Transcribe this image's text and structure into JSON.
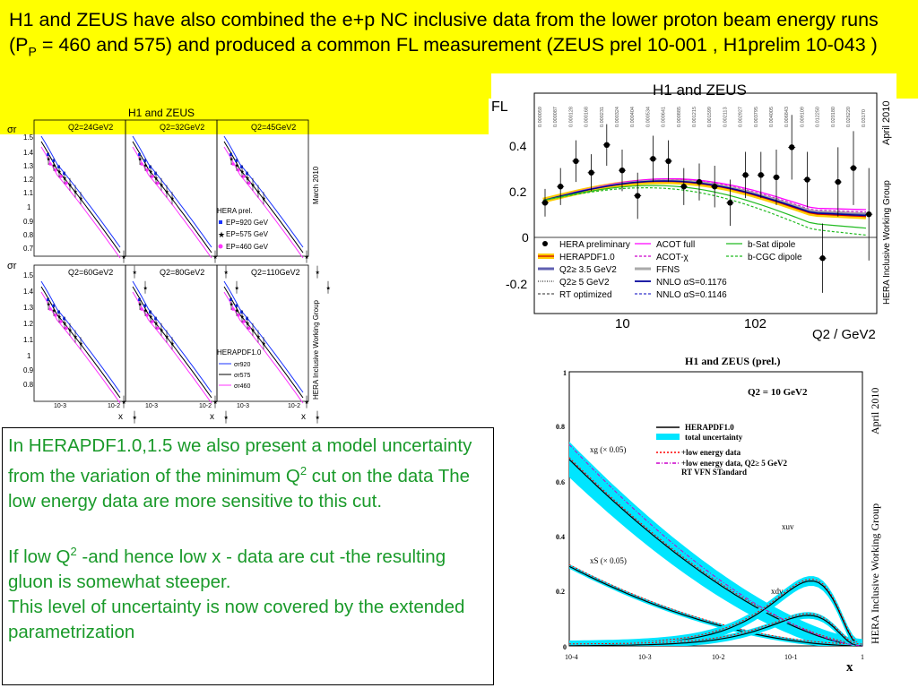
{
  "slide": {
    "title_parts": [
      "H1 and ZEUS have also combined the e+p NC inclusive data from the lower proton beam energy runs (P",
      "P",
      " = 460 and 575) and produced a common FL measurement (ZEUS prel 10-001 , H1prelim 10-043 )"
    ],
    "text": {
      "p1": [
        "In HERAPDF1.0,1.5  we also present a model uncertainty from the variation of the minimum Q",
        "2",
        " cut on the data The low energy data are more sensitive to this cut."
      ],
      "p2": [
        "If low Q",
        "2",
        " -and hence low x - data are cut -the resulting gluon is somewhat steeper."
      ],
      "p3": "This level of uncertainty is now covered by the extended parametrization"
    }
  },
  "sigma_figure": {
    "title": "H1 and ZEUS",
    "side_top": "March 2010",
    "side_bottom": "HERA Inclusive Working Group",
    "ylabel": "σr",
    "xlabel": "x",
    "yticks_top": [
      "1.5",
      "1.4",
      "1.3",
      "1.2",
      "1.1",
      "1",
      "0.9",
      "0.8",
      "0.7"
    ],
    "yticks_bottom": [
      "1.5",
      "1.4",
      "1.3",
      "1.2",
      "1.1",
      "1",
      "0.9",
      "0.8"
    ],
    "xtick_a": "10-3",
    "xtick_b": "10-2",
    "panels": [
      "Q2=24GeV2",
      "Q2=32GeV2",
      "Q2=45GeV2",
      "Q2=60GeV2",
      "Q2=80GeV2",
      "Q2=110GeV2"
    ],
    "legend_data": {
      "title": "HERA prel.",
      "items": [
        "EP=920 GeV",
        "EP=575 GeV",
        "EP=460 GeV"
      ]
    },
    "legend_curves": {
      "title": "HERAPDF1.0",
      "items": [
        "σr920",
        "σr575",
        "σr460"
      ]
    }
  },
  "fl_figure": {
    "title": "H1 and ZEUS",
    "ylabel": "FL",
    "xlabel": "Q2 / GeV2",
    "side_top": "April 2010",
    "side_bottom": "HERA Inclusive Working Group",
    "yticks": [
      "0.4",
      "0.2",
      "0",
      "-0.2"
    ],
    "xticks": [
      "10",
      "102"
    ],
    "x_values_labels": [
      "0.000059",
      "0.000087",
      "0.000128",
      "0.000168",
      "0.000231",
      "0.000324",
      "0.000404",
      "0.000534",
      "0.000641",
      "0.000885",
      "0.001215",
      "0.001599",
      "0.002113",
      "0.002927",
      "0.003795",
      "0.004005",
      "0.006843",
      "0.009109",
      "0.012250",
      "0.020180",
      "0.026220",
      "0.03170"
    ],
    "legend": [
      {
        "label": "HERA preliminary",
        "color": "#000000"
      },
      {
        "label": "HERAPDF1.0",
        "color": "#ff9900"
      },
      {
        "label": "Q2≥ 3.5 GeV2",
        "color": "#6060b0"
      },
      {
        "label": "Q2≥ 5 GeV2",
        "color": "#333333"
      },
      {
        "label": "RT optimized",
        "color": "#555555"
      },
      {
        "label": "ACOT full",
        "color": "#ff00ff"
      },
      {
        "label": "ACOT-χ",
        "color": "#cc00cc"
      },
      {
        "label": "FFNS",
        "color": "#aaaaaa"
      },
      {
        "label": "NNLO αS=0.1176",
        "color": "#000099"
      },
      {
        "label": "NNLO αS=0.1146",
        "color": "#3333cc"
      },
      {
        "label": "b-Sat dipole",
        "color": "#22bb22"
      },
      {
        "label": "b-CGC dipole",
        "color": "#22bb22"
      }
    ]
  },
  "pdf_figure": {
    "title": "H1 and ZEUS (prel.)",
    "q2_label": "Q2 = 10 GeV2",
    "side_top": "April 2010",
    "side_bottom": "HERA Inclusive Working Group",
    "xlabel": "x",
    "yticks": [
      "1",
      "0.8",
      "0.6",
      "0.4",
      "0.2",
      "0"
    ],
    "xticks": [
      "10-4",
      "10-3",
      "10-2",
      "10-1",
      "1"
    ],
    "legend": [
      "HERAPDF1.0",
      "total uncertainty",
      "+low energy data",
      "+low energy data, Q2≥ 5 GeV2",
      "RT VFN STandard"
    ],
    "curve_labels": [
      "xg (× 0.05)",
      "xS (× 0.05)",
      "xuv",
      "xdv"
    ]
  }
}
